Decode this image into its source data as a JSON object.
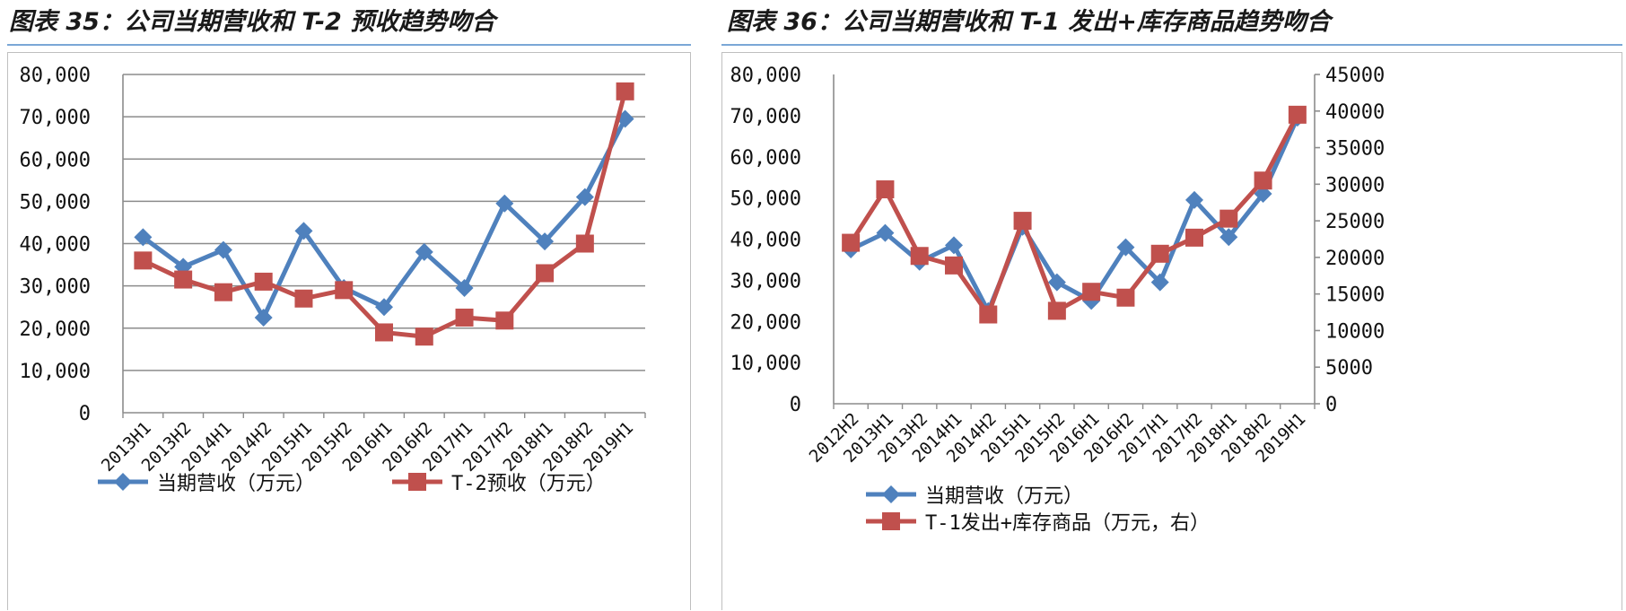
{
  "panels": [
    {
      "title": "图表 35：公司当期营收和 T-2 预收趋势吻合"
    },
    {
      "title": "图表 36：公司当期营收和 T-1 发出+库存商品趋势吻合"
    }
  ],
  "colors": {
    "blue": "#4f81bd",
    "red": "#c0504d",
    "grid": "#8c8c8c",
    "rule": "#7aa7d6"
  },
  "chart_data": [
    {
      "type": "line",
      "categories": [
        "2013H1",
        "2013H2",
        "2014H1",
        "2014H2",
        "2015H1",
        "2015H2",
        "2016H1",
        "2016H2",
        "2017H1",
        "2017H2",
        "2018H1",
        "2018H2",
        "2019H1"
      ],
      "y_ticks": [
        "0",
        "10,000",
        "20,000",
        "30,000",
        "40,000",
        "50,000",
        "60,000",
        "70,000",
        "80,000"
      ],
      "ylim": [
        0,
        80000
      ],
      "grid": true,
      "legend_position": "bottom",
      "series": [
        {
          "name": "当期营收（万元）",
          "color": "#4f81bd",
          "marker": "diamond",
          "values": [
            41500,
            34500,
            38500,
            22500,
            43000,
            29500,
            25000,
            38000,
            29500,
            49500,
            40500,
            51000,
            69500
          ]
        },
        {
          "name": "T-2预收（万元）",
          "color": "#c0504d",
          "marker": "square",
          "values": [
            36000,
            31500,
            28500,
            31000,
            27000,
            29000,
            19000,
            18000,
            22500,
            21800,
            33000,
            40000,
            76000
          ]
        }
      ]
    },
    {
      "type": "line",
      "categories": [
        "2012H2",
        "2013H1",
        "2013H2",
        "2014H1",
        "2014H2",
        "2015H1",
        "2015H2",
        "2016H1",
        "2016H2",
        "2017H1",
        "2017H2",
        "2018H1",
        "2018H2",
        "2019H1"
      ],
      "y_ticks": [
        "0",
        "10,000",
        "20,000",
        "30,000",
        "40,000",
        "50,000",
        "60,000",
        "70,000",
        "80,000"
      ],
      "ylim": [
        0,
        80000
      ],
      "y2_ticks": [
        "0",
        "5000",
        "10000",
        "15000",
        "20000",
        "25000",
        "30000",
        "35000",
        "40000",
        "45000"
      ],
      "y2lim": [
        0,
        45000
      ],
      "grid": false,
      "legend_position": "bottom",
      "series": [
        {
          "name": "当期营收（万元）",
          "color": "#4f81bd",
          "marker": "diamond",
          "axis": "left",
          "values": [
            37500,
            41500,
            34500,
            38500,
            22500,
            43000,
            29500,
            25000,
            38000,
            29500,
            49500,
            40500,
            51000,
            69500
          ]
        },
        {
          "name": "T-1发出+库存商品（万元，右）",
          "color": "#c0504d",
          "marker": "square",
          "axis": "right",
          "values": [
            22000,
            29300,
            20200,
            18900,
            12200,
            25000,
            12700,
            15300,
            14500,
            20500,
            22700,
            25300,
            30500,
            39500
          ]
        }
      ]
    }
  ]
}
